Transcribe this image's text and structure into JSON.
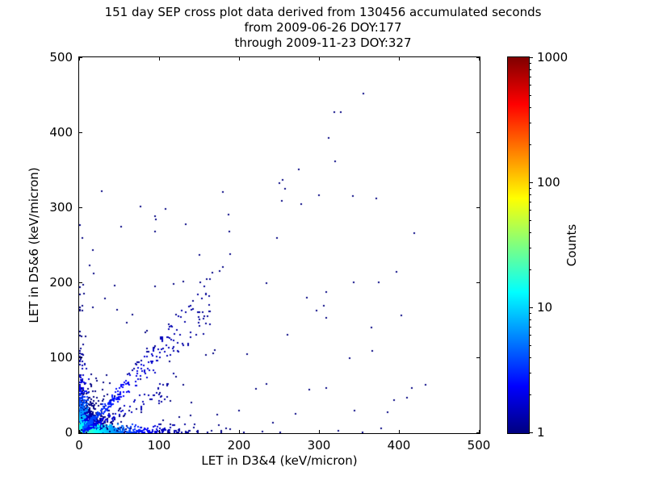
{
  "chart_data": {
    "type": "scatter",
    "title_lines": [
      "151 day SEP cross plot data derived from 130456 accumulated seconds",
      "from 2009-06-26 DOY:177",
      "through 2009-11-23 DOY:327"
    ],
    "xlabel": "LET in D3&4 (keV/micron)",
    "ylabel": "LET in D5&6 (keV/micron)",
    "xlim": [
      0,
      500
    ],
    "ylim": [
      0,
      500
    ],
    "xticks": [
      0,
      100,
      200,
      300,
      400,
      500
    ],
    "yticks": [
      0,
      100,
      200,
      300,
      400,
      500
    ],
    "grid": false,
    "colorbar": {
      "label": "Counts",
      "scale": "log",
      "min": 1,
      "max": 1000,
      "ticks": [
        1,
        10,
        100,
        1000
      ],
      "colormap": "jet",
      "low_color": "#000080",
      "high_color": "#800000"
    },
    "point_color_rule": "jet(log10(count)/log10(1000))",
    "features": [
      {
        "type": "cluster",
        "name": "origin-hotspot",
        "n": 5200,
        "x": 0,
        "y": 0,
        "scale_x": 5,
        "scale_y": 5,
        "clip": 70,
        "max_count": 1000,
        "count_decay": 4.5
      },
      {
        "type": "cluster",
        "name": "origin-halo",
        "n": 900,
        "x": 0,
        "y": 0,
        "scale_x": 15,
        "scale_y": 15,
        "clip": 95,
        "max_count": 6,
        "count_decay": 25
      },
      {
        "type": "band_x",
        "name": "bottom-edge-band",
        "n": 450,
        "scale_len": 45,
        "max_len": 435,
        "thickness": 4,
        "max_count": 30
      },
      {
        "type": "band_y",
        "name": "left-edge-band",
        "n": 260,
        "scale_len": 38,
        "max_len": 372,
        "thickness": 4,
        "max_count": 20
      },
      {
        "type": "diagonal",
        "name": "proton-diagonal-fan",
        "n": 300,
        "slope": 1.05,
        "min_x": 5,
        "max_x": 165,
        "spread": 0.4,
        "max_count": 5
      },
      {
        "type": "diagonal",
        "name": "upper-diagonal-sparse",
        "n": 30,
        "slope": 1.28,
        "min_x": 60,
        "max_x": 345,
        "spread": 0.1,
        "max_count": 2
      },
      {
        "type": "diagonal",
        "name": "lower-fan",
        "n": 100,
        "slope": 0.55,
        "min_x": 5,
        "max_x": 120,
        "spread": 0.5,
        "max_count": 3
      },
      {
        "type": "sparse",
        "name": "background-scatter",
        "n": 90,
        "max_x": 420,
        "max_y": 345,
        "bias": 1.8,
        "max_count": 1
      },
      {
        "type": "points",
        "name": "notable-points",
        "coords": [
          [
            355,
            452
          ],
          [
            320,
            362
          ],
          [
            250,
            333
          ],
          [
            342,
            315
          ],
          [
            432,
            64
          ],
          [
            95,
            268
          ],
          [
            28,
            322
          ],
          [
            150,
            237
          ],
          [
            118,
            198
          ]
        ],
        "max_count": 1
      }
    ]
  }
}
